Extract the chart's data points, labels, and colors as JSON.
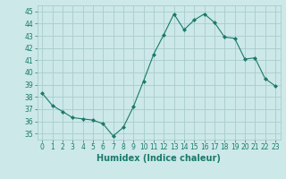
{
  "x": [
    0,
    1,
    2,
    3,
    4,
    5,
    6,
    7,
    8,
    9,
    10,
    11,
    12,
    13,
    14,
    15,
    16,
    17,
    18,
    19,
    20,
    21,
    22,
    23
  ],
  "y": [
    38.3,
    37.3,
    36.8,
    36.3,
    36.2,
    36.1,
    35.8,
    34.8,
    35.5,
    37.2,
    39.3,
    41.5,
    43.1,
    44.8,
    43.5,
    44.3,
    44.8,
    44.1,
    42.9,
    42.8,
    41.1,
    41.2,
    39.5,
    38.9
  ],
  "line_color": "#1a7a6a",
  "marker": "D",
  "marker_size": 2.0,
  "bg_color": "#cce8e8",
  "grid_color": "#aacccc",
  "xlabel": "Humidex (Indice chaleur)",
  "ylim": [
    34.5,
    45.5
  ],
  "yticks": [
    35,
    36,
    37,
    38,
    39,
    40,
    41,
    42,
    43,
    44,
    45
  ],
  "xticks": [
    0,
    1,
    2,
    3,
    4,
    5,
    6,
    7,
    8,
    9,
    10,
    11,
    12,
    13,
    14,
    15,
    16,
    17,
    18,
    19,
    20,
    21,
    22,
    23
  ],
  "tick_fontsize": 5.5,
  "xlabel_fontsize": 7
}
